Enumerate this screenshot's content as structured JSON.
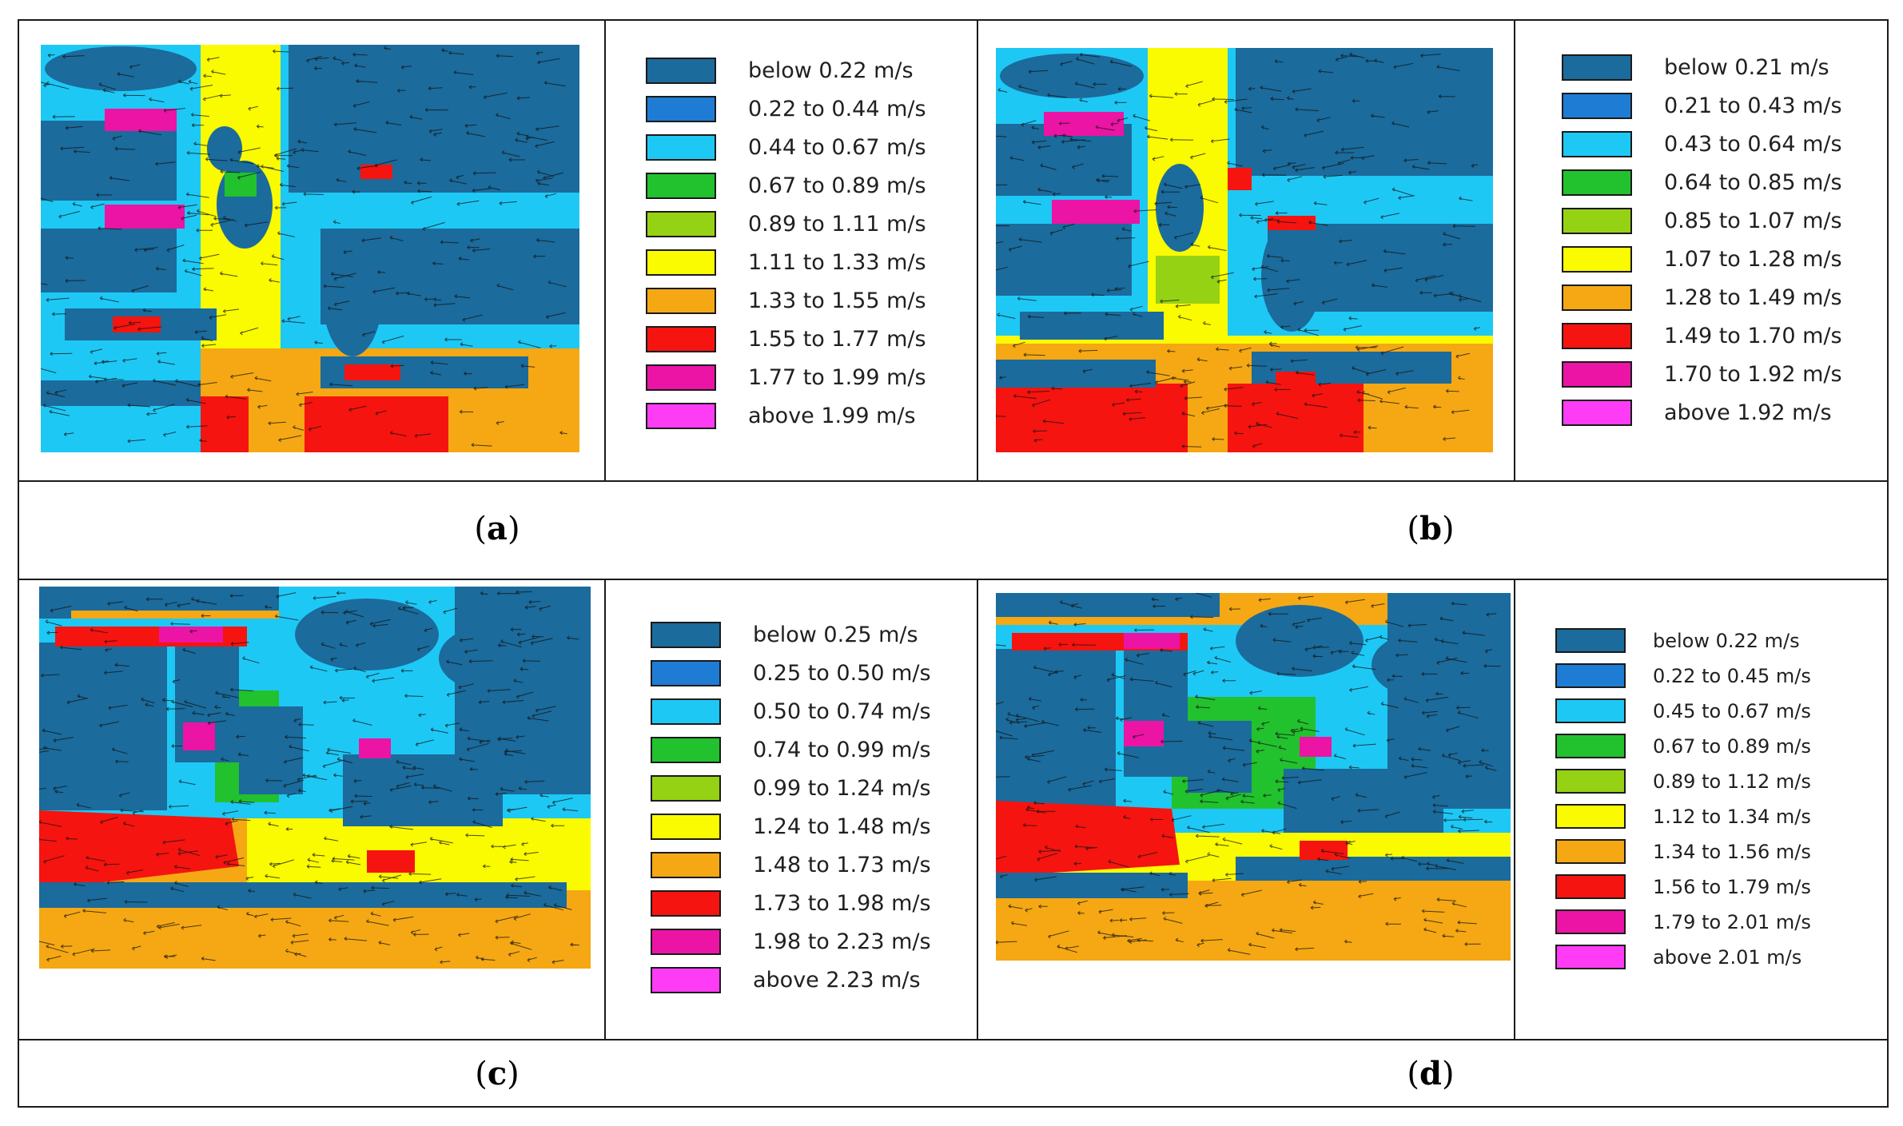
{
  "panels": [
    {
      "label": "a",
      "legend": [
        "below 0.22 m/s",
        "0.22 to 0.44 m/s",
        "0.44 to 0.67 m/s",
        "0.67 to 0.89 m/s",
        "0.89 to 1.11 m/s",
        "1.11 to 1.33 m/s",
        "1.33 to 1.55 m/s",
        "1.55 to 1.77 m/s",
        "1.77 to 1.99 m/s",
        "above 1.99 m/s"
      ]
    },
    {
      "label": "b",
      "legend": [
        "below 0.21 m/s",
        "0.21 to 0.43 m/s",
        "0.43 to 0.64 m/s",
        "0.64 to 0.85 m/s",
        "0.85 to 1.07 m/s",
        "1.07 to 1.28 m/s",
        "1.28 to 1.49 m/s",
        "1.49 to 1.70 m/s",
        "1.70 to 1.92 m/s",
        "above 1.92 m/s"
      ]
    },
    {
      "label": "c",
      "legend": [
        "below 0.25 m/s",
        "0.25 to 0.50 m/s",
        "0.50 to 0.74 m/s",
        "0.74 to 0.99 m/s",
        "0.99 to 1.24 m/s",
        "1.24 to 1.48 m/s",
        "1.48 to 1.73 m/s",
        "1.73 to 1.98 m/s",
        "1.98 to 2.23 m/s",
        "above 2.23 m/s"
      ]
    },
    {
      "label": "d",
      "legend": [
        "below 0.22 m/s",
        "0.22 to 0.45 m/s",
        "0.45 to 0.67 m/s",
        "0.67 to 0.89 m/s",
        "0.89 to 1.12 m/s",
        "1.12 to 1.34 m/s",
        "1.34 to 1.56 m/s",
        "1.56 to 1.79 m/s",
        "1.79 to 2.01 m/s",
        "above 2.01 m/s"
      ]
    }
  ],
  "legend_colors": [
    "#1b6b9c",
    "#1e7cd4",
    "#1ec8f5",
    "#22c12e",
    "#96d214",
    "#fafa00",
    "#f5a813",
    "#f5140f",
    "#eb14a5",
    "#ff3cf5"
  ],
  "map_colors": {
    "building": "#1b6b9c",
    "slow": "#1e7cd4",
    "cyan": "#1ec8f5",
    "green": "#22c12e",
    "lime": "#96d214",
    "yellow": "#fafa00",
    "orange": "#f5a813",
    "red": "#f5140f",
    "magenta": "#eb14a5"
  }
}
